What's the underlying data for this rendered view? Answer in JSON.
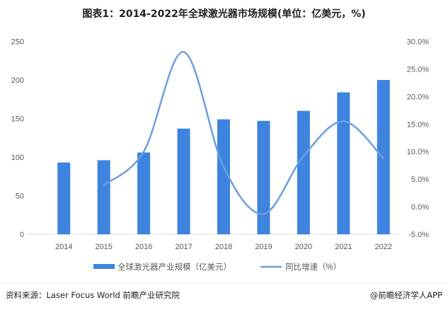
{
  "chart_data": {
    "type": "bar+line",
    "title": "图表1：2014-2022年全球激光器市场规模(单位：亿美元，%)",
    "categories": [
      "2014",
      "2015",
      "2016",
      "2017",
      "2018",
      "2019",
      "2020",
      "2021",
      "2022"
    ],
    "series": [
      {
        "name": "全球激光器产业规模（亿美元）",
        "type": "bar",
        "axis": "left",
        "color": "#3E84DF",
        "values": [
          93,
          96,
          106,
          137,
          149,
          147,
          160,
          184,
          200
        ]
      },
      {
        "name": "同比增速（%）",
        "type": "line",
        "axis": "right",
        "color": "#6D9EE0",
        "smooth": true,
        "values": [
          null,
          3.9,
          10.0,
          28.1,
          7.2,
          -1.3,
          9.2,
          15.5,
          8.8
        ]
      }
    ],
    "y_left": {
      "lim": [
        0,
        250
      ],
      "ticks": [
        "0",
        "50",
        "100",
        "150",
        "200",
        "250"
      ]
    },
    "y_right": {
      "lim": [
        -5,
        30
      ],
      "ticks": [
        "-5.0%",
        "0.0%",
        "5.0%",
        "10.0%",
        "15.0%",
        "20.0%",
        "25.0%",
        "30.0%"
      ]
    },
    "grid": false,
    "legend": "bottom"
  },
  "footer": {
    "source": "资料来源：Laser Focus World 前瞻产业研究院",
    "brand": "@前瞻经济学人APP"
  }
}
